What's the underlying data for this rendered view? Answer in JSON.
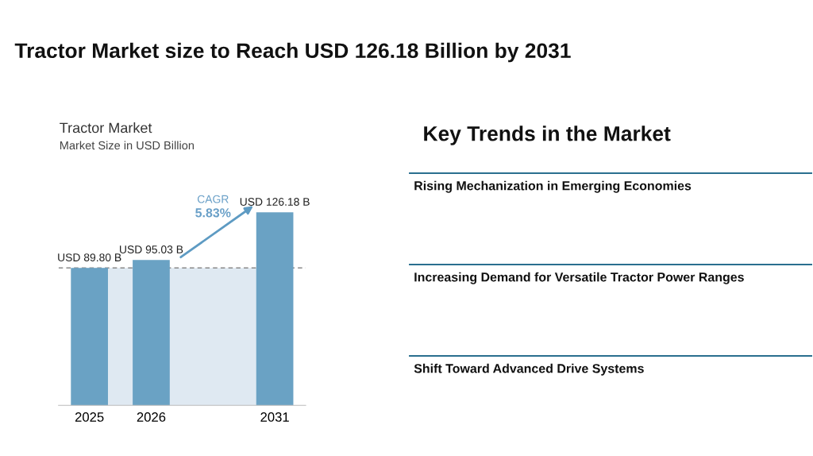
{
  "chart_data": [
    {
      "type": "bar",
      "title": "Tractor Market size to Reach USD 126.18 Billion by 2031",
      "subtitle": "Tractor Market",
      "ylabel": "Market Size in USD Billion",
      "categories": [
        "2025",
        "2026",
        null,
        "2031"
      ],
      "values": [
        89.8,
        95.03,
        null,
        126.18
      ],
      "value_labels": [
        "USD 89.80 B",
        "USD 95.03 B",
        null,
        "USD 126.18 B"
      ],
      "color": "#6aa2c4",
      "ref_lines": [
        {
          "axis": "y",
          "value": 89.8,
          "color": "#8a8a8a",
          "line_style": "dashed"
        }
      ],
      "bands": [
        {
          "axis": "y",
          "from": 0,
          "to": 89.8,
          "color": "#dfe9f2"
        }
      ],
      "annotations": [
        "CAGR",
        "5.83%"
      ]
    },
    {
      "type": "other",
      "title": "Key Trends in the Market",
      "annotations": [
        "Rising Mechanization in Emerging Economies",
        "Increasing Demand for Versatile Tractor Power Ranges",
        "Shift Toward Advanced Drive Systems"
      ],
      "color": "#2a6f8f"
    }
  ]
}
